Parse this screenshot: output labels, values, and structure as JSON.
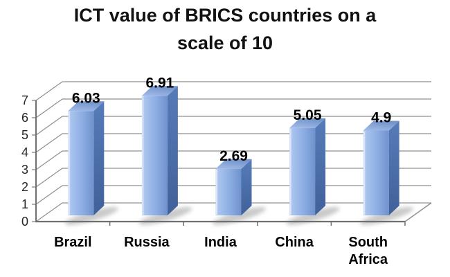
{
  "chart_data": {
    "type": "bar",
    "projection": "3d",
    "title": "ICT value of BRICS countries on a scale of 10",
    "title_lines": [
      "ICT value of BRICS countries on a",
      "scale of 10"
    ],
    "categories": [
      "Brazil",
      "Russia",
      "India",
      "China",
      "South Africa"
    ],
    "category_label_lines": [
      [
        "Brazil"
      ],
      [
        "Russia"
      ],
      [
        "India"
      ],
      [
        "China"
      ],
      [
        "South",
        "Africa"
      ]
    ],
    "values": [
      6.03,
      6.91,
      2.69,
      5.05,
      4.9
    ],
    "value_labels": [
      "6.03",
      "6.91",
      "2.69",
      "5.05",
      "4.9"
    ],
    "xlabel": "",
    "ylabel": "",
    "ylim": [
      0,
      7
    ],
    "yticks": [
      0,
      1,
      2,
      3,
      4,
      5,
      6,
      7
    ],
    "grid": true,
    "legend": false,
    "colors": {
      "background": "#ffffff",
      "title_text": "#111111",
      "label_text": "#000000",
      "ytick_text": "#262626",
      "gridline": "#8f8f8f",
      "axis_line": "#6f6f6f",
      "bar_front_highlight": "#c3d4f3",
      "bar_front_light": "#a9c3ee",
      "bar_front_mid": "#8caee3",
      "bar_front_dark": "#7092cd",
      "bar_side_top": "#567cb9",
      "bar_side_bottom": "#406199",
      "bar_top_front": "#a3bce9",
      "bar_top_back": "#7394cb",
      "shadow": "#8a8a8a"
    }
  }
}
